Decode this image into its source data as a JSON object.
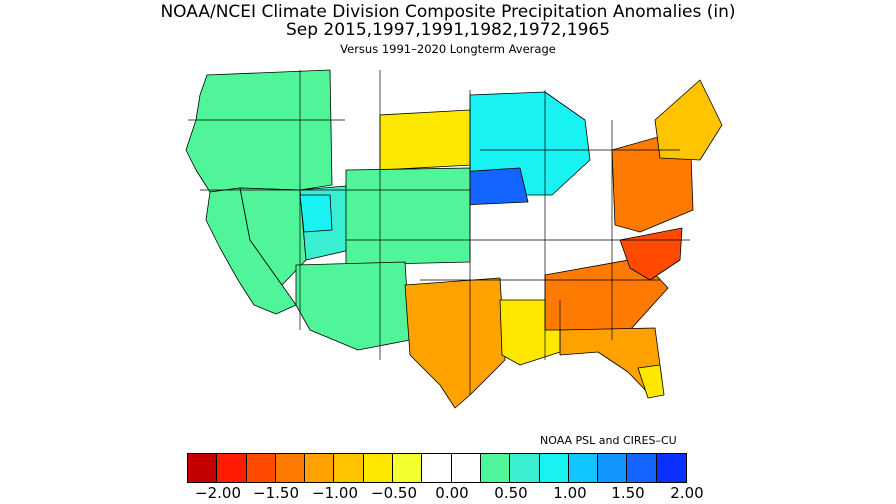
{
  "title": {
    "line1": "NOAA/NCEI Climate Division Composite Precipitation Anomalies (in)",
    "line2": "Sep  2015,1997,1991,1982,1972,1965",
    "line3": "Versus 1991–2020 Longterm Average"
  },
  "credit": "NOAA PSL and CIRES–CU",
  "legend": {
    "colors": [
      "#c40000",
      "#ff1a00",
      "#ff4a00",
      "#ff7a00",
      "#ffa200",
      "#ffc400",
      "#ffe800",
      "#f4ff30",
      "#ffffff",
      "#ffffff",
      "#50f59a",
      "#3aefd0",
      "#18f2f2",
      "#10c6ff",
      "#1496ff",
      "#1464ff",
      "#0a30ff"
    ],
    "ticks": [
      "−2.00",
      "−1.50",
      "−1.00",
      "−0.50",
      "0.00",
      "0.50",
      "1.00",
      "1.50",
      "2.00"
    ]
  },
  "regions": [
    {
      "name": "northwest",
      "color": "#50f59a"
    },
    {
      "name": "california-coast",
      "color": "#50f59a"
    },
    {
      "name": "great-basin",
      "color": "#50f59a"
    },
    {
      "name": "rockies-central",
      "color": "#3aefd0"
    },
    {
      "name": "utah-highlands",
      "color": "#18f2f2"
    },
    {
      "name": "northern-plains-dry",
      "color": "#ffe800"
    },
    {
      "name": "upper-midwest",
      "color": "#18f2f2"
    },
    {
      "name": "iowa-core",
      "color": "#1464ff"
    },
    {
      "name": "central-plains",
      "color": "#50f59a"
    },
    {
      "name": "southwest",
      "color": "#50f59a"
    },
    {
      "name": "texas",
      "color": "#ffa200"
    },
    {
      "name": "gulf-coast",
      "color": "#ffe800"
    },
    {
      "name": "southeast",
      "color": "#ff7a00"
    },
    {
      "name": "carolinas",
      "color": "#ff4a00"
    },
    {
      "name": "mid-atlantic",
      "color": "#ff7a00"
    },
    {
      "name": "new-england",
      "color": "#ffc400"
    },
    {
      "name": "florida-peninsula",
      "color": "#ffa200"
    },
    {
      "name": "south-florida",
      "color": "#ffe800"
    }
  ]
}
